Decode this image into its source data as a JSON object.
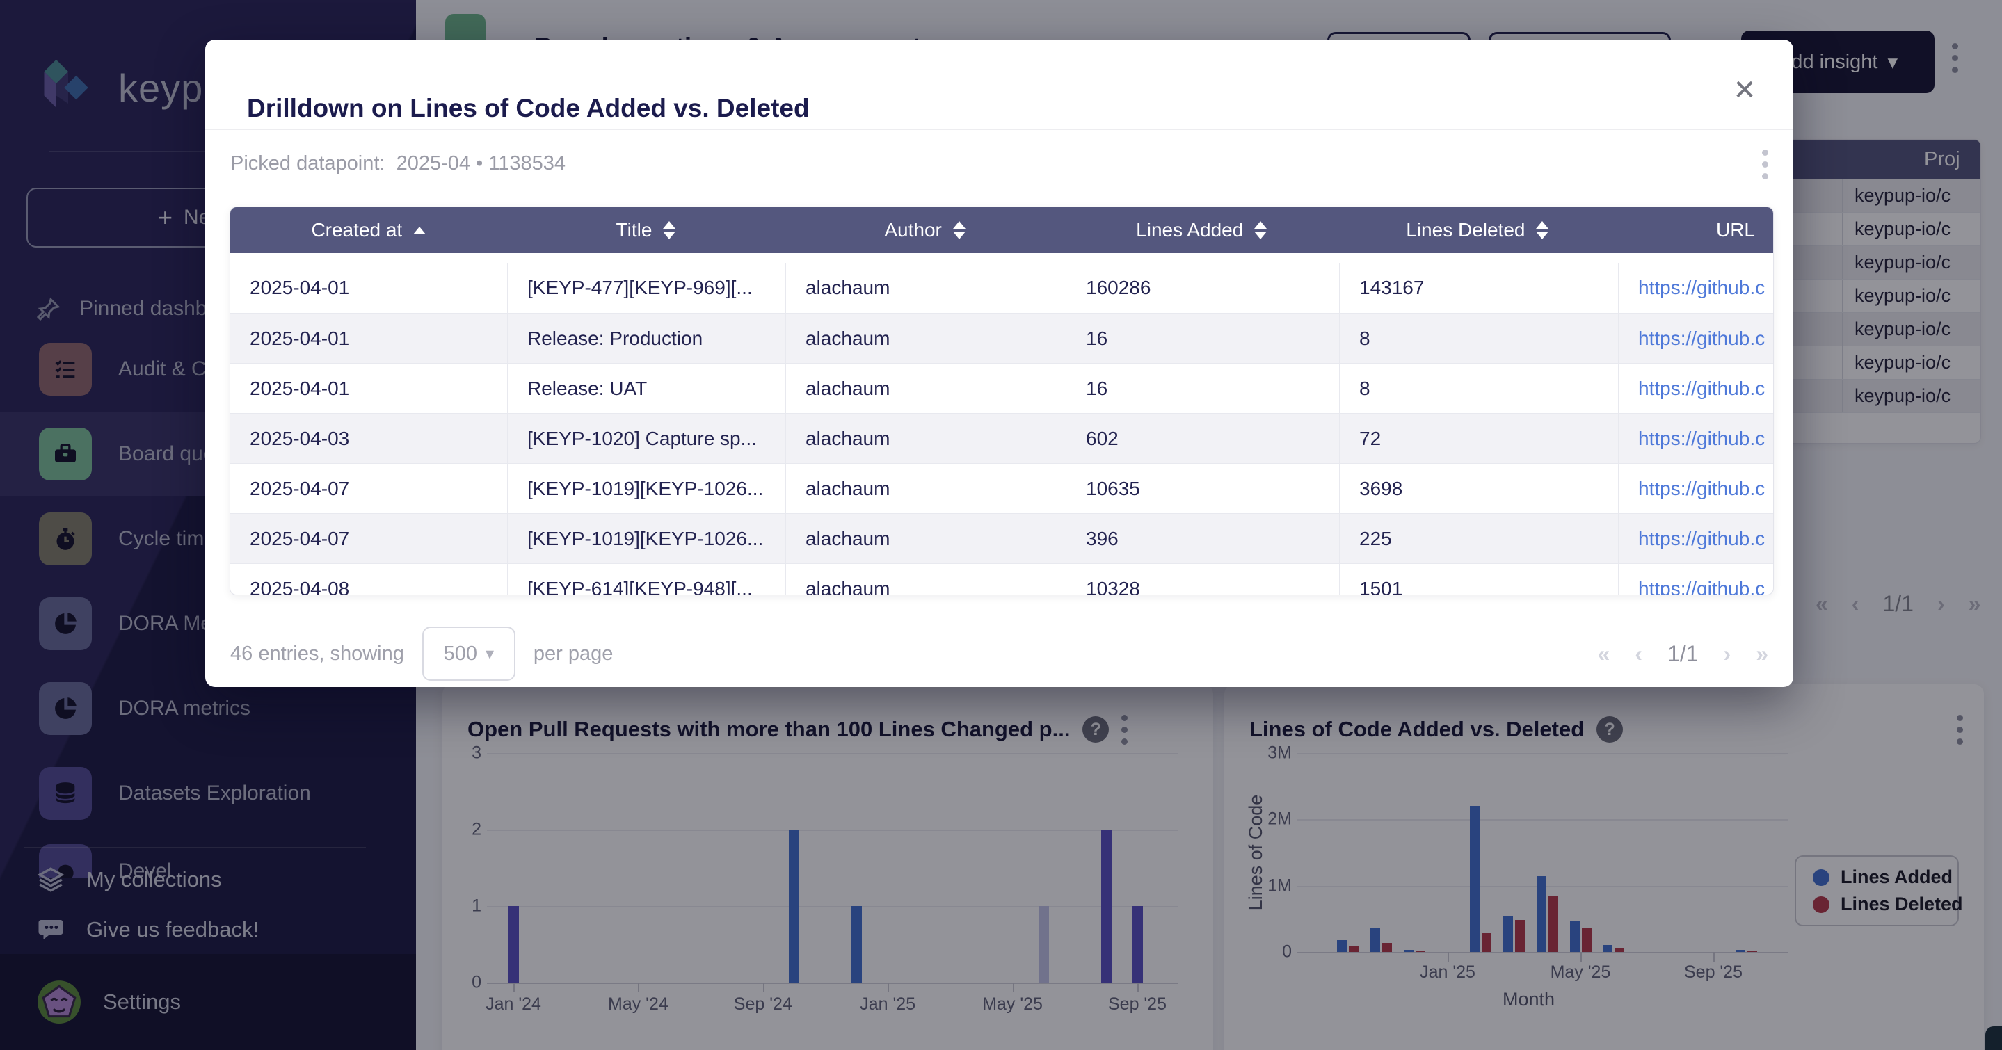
{
  "ui": {
    "help_glyph": "?",
    "caret": "▾",
    "plus": "+"
  },
  "colors": {
    "sidebar_bg": "#2b2759",
    "sidebar_active_bg": "#3a3568",
    "table_header": "#54577e",
    "primary_button_bg": "#181735",
    "link": "#4f79d9",
    "bar_indigo": "#5a50c2",
    "bar_blue": "#4270cf",
    "bar_pale": "#c2c5e8",
    "bar_red": "#b5394a",
    "board_icon_green": "#6fb78c"
  },
  "sidebar": {
    "logo_text": "keypup",
    "new_dashboard_button": "New d",
    "pinned_label": "Pinned dashbo",
    "nav_items": [
      {
        "label": "Audit & Comp",
        "icon": "checklist-icon",
        "icon_bg": "#93696f",
        "active": false,
        "partial": false
      },
      {
        "label": "Board questi",
        "icon": "briefcase-icon",
        "icon_bg": "#7fc39b",
        "active": true,
        "partial": false
      },
      {
        "label": "Cycle time da",
        "icon": "stopwatch-icon",
        "icon_bg": "#84806d",
        "active": false,
        "partial": false
      },
      {
        "label": "DORA Metric",
        "icon": "pie-chart-icon",
        "icon_bg": "#6a6e9b",
        "active": false,
        "partial": false
      },
      {
        "label": "DORA metrics",
        "icon": "pie-chart-icon",
        "icon_bg": "#6a6e9b",
        "active": false,
        "partial": false
      },
      {
        "label": "Datasets Exploration",
        "icon": "database-icon",
        "icon_bg": "#554d96",
        "active": false,
        "partial": false
      },
      {
        "label": "Devel",
        "icon": "dashboard-icon",
        "icon_bg": "#554d96",
        "active": false,
        "partial": true
      }
    ],
    "my_collections_label": "My collections",
    "feedback_label": "Give us feedback!",
    "settings_label": "Settings"
  },
  "header": {
    "title": "Board questions & Assessment",
    "add_insight_label": "Add insight"
  },
  "projects_panel": {
    "column_header": "Proj",
    "rows": [
      "keypup-io/c",
      "keypup-io/c",
      "keypup-io/c",
      "keypup-io/c",
      "keypup-io/c",
      "keypup-io/c",
      "keypup-io/c"
    ],
    "pagination": {
      "first": "«",
      "prev": "‹",
      "page": "1/1",
      "next": "›",
      "last": "»"
    }
  },
  "modal": {
    "title": "Drilldown on Lines of Code Added vs. Deleted",
    "close_glyph": "✕",
    "picked_label": "Picked datapoint:",
    "picked_value": "2025-04 • 1138534",
    "table": {
      "columns": [
        {
          "label": "Created at",
          "sort": "asc"
        },
        {
          "label": "Title",
          "sort": "both"
        },
        {
          "label": "Author",
          "sort": "both"
        },
        {
          "label": "Lines Added",
          "sort": "both"
        },
        {
          "label": "Lines Deleted",
          "sort": "both"
        },
        {
          "label": "URL",
          "sort": "none"
        }
      ],
      "rows": [
        [
          "2025-04-01",
          "[KEYP-477][KEYP-969][...",
          "alachaum",
          "160286",
          "143167",
          "https://github.c"
        ],
        [
          "2025-04-01",
          "Release: Production",
          "alachaum",
          "16",
          "8",
          "https://github.c"
        ],
        [
          "2025-04-01",
          "Release: UAT",
          "alachaum",
          "16",
          "8",
          "https://github.c"
        ],
        [
          "2025-04-03",
          "[KEYP-1020] Capture sp...",
          "alachaum",
          "602",
          "72",
          "https://github.c"
        ],
        [
          "2025-04-07",
          "[KEYP-1019][KEYP-1026...",
          "alachaum",
          "10635",
          "3698",
          "https://github.c"
        ],
        [
          "2025-04-07",
          "[KEYP-1019][KEYP-1026...",
          "alachaum",
          "396",
          "225",
          "https://github.c"
        ],
        [
          "2025-04-08",
          "[KEYP-614][KEYP-948][...",
          "alachaum",
          "10328",
          "1501",
          "https://github.c"
        ]
      ]
    },
    "footer": {
      "entries_text": "46 entries, showing",
      "page_size": "500",
      "per_page_text": "per page",
      "pagination": {
        "first": "«",
        "prev": "‹",
        "page": "1/1",
        "next": "›",
        "last": "»"
      }
    }
  },
  "chart_data": [
    {
      "type": "bar",
      "title": "Open Pull Requests with more than 100 Lines Changed p...",
      "xlabel": "",
      "ylabel": "",
      "ylim": [
        0,
        3
      ],
      "grid": true,
      "yticks": [
        {
          "v": 0,
          "label": "0"
        },
        {
          "v": 1,
          "label": "1"
        },
        {
          "v": 2,
          "label": "2"
        },
        {
          "v": 3,
          "label": "3"
        }
      ],
      "xticks": [
        {
          "m": 0,
          "label": "Jan '24"
        },
        {
          "m": 4,
          "label": "May '24"
        },
        {
          "m": 8,
          "label": "Sep '24"
        },
        {
          "m": 12,
          "label": "Jan '25"
        },
        {
          "m": 16,
          "label": "May '25"
        },
        {
          "m": 20,
          "label": "Sep '25"
        }
      ],
      "bars": [
        {
          "month": "Jan '24",
          "m": 0,
          "value": 1,
          "color": "indigo"
        },
        {
          "month": "Oct '24",
          "m": 9,
          "value": 2,
          "color": "blue"
        },
        {
          "month": "Dec '24",
          "m": 11,
          "value": 1,
          "color": "blue"
        },
        {
          "month": "Jun '25",
          "m": 17,
          "value": 1,
          "color": "pale"
        },
        {
          "month": "Aug '25",
          "m": 19,
          "value": 2,
          "color": "indigo"
        },
        {
          "month": "Sep '25",
          "m": 20,
          "value": 1,
          "color": "indigo"
        }
      ]
    },
    {
      "type": "bar-grouped",
      "title": "Lines of Code Added vs. Deleted",
      "xlabel": "Month",
      "ylabel": "Lines of Code",
      "ylim": [
        0,
        3000000
      ],
      "grid": true,
      "legend_position": "right",
      "yticks": [
        {
          "v": 0,
          "label": "0"
        },
        {
          "v": 1000000,
          "label": "1M"
        },
        {
          "v": 2000000,
          "label": "2M"
        },
        {
          "v": 3000000,
          "label": "3M"
        }
      ],
      "xticks": [
        {
          "m": 0,
          "label": "Jan '25"
        },
        {
          "m": 4,
          "label": "May '25"
        },
        {
          "m": 8,
          "label": "Sep '25"
        }
      ],
      "series": [
        {
          "name": "Lines Added",
          "color": "blue"
        },
        {
          "name": "Lines Deleted",
          "color": "red"
        }
      ],
      "points": [
        {
          "month": "Oct '24",
          "m": -3,
          "added": 175000,
          "deleted": 90000
        },
        {
          "month": "Nov '24",
          "m": -2,
          "added": 360000,
          "deleted": 140000
        },
        {
          "month": "Dec '24",
          "m": -1,
          "added": 30000,
          "deleted": 10000
        },
        {
          "month": "Feb '25",
          "m": 1,
          "added": 2200000,
          "deleted": 280000
        },
        {
          "month": "Mar '25",
          "m": 2,
          "added": 550000,
          "deleted": 480000
        },
        {
          "month": "Apr '25",
          "m": 3,
          "added": 1138534,
          "deleted": 850000
        },
        {
          "month": "May '25",
          "m": 4,
          "added": 460000,
          "deleted": 360000
        },
        {
          "month": "Jun '25",
          "m": 5,
          "added": 100000,
          "deleted": 60000
        },
        {
          "month": "Oct '25",
          "m": 9,
          "added": 30000,
          "deleted": 10000
        }
      ]
    }
  ]
}
